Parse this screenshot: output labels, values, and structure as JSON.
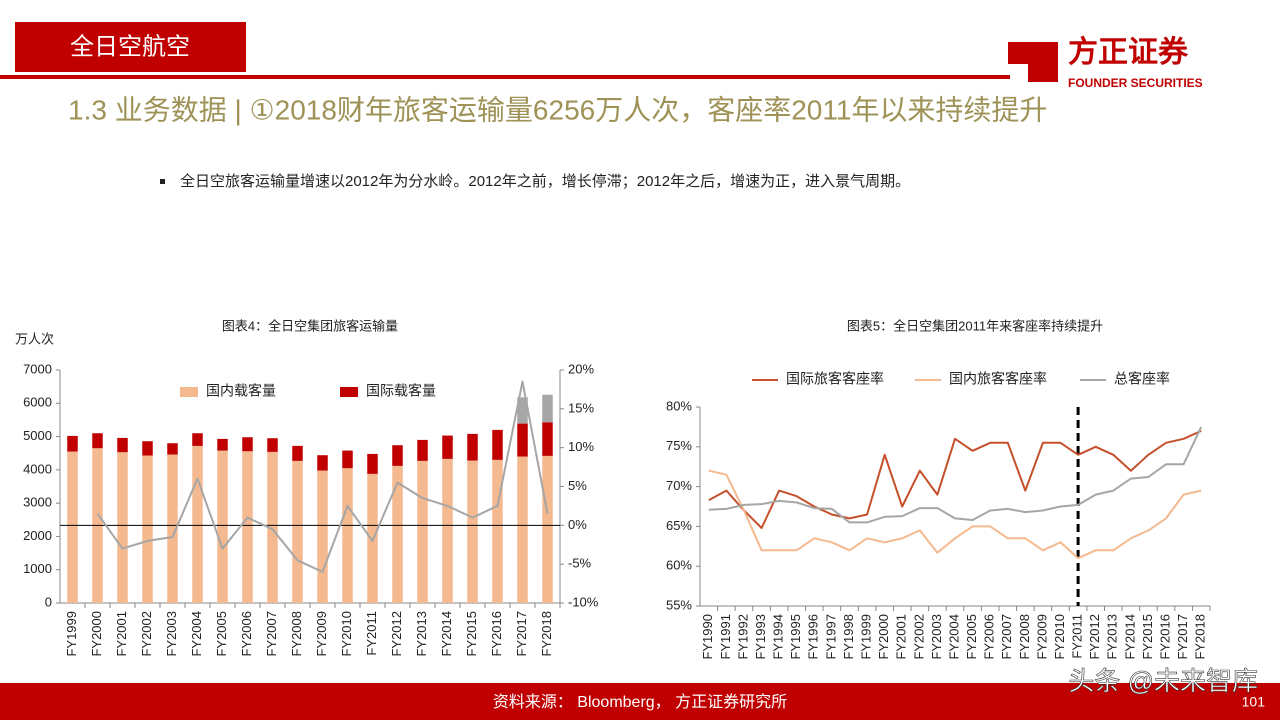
{
  "header": {
    "section": "全日空航空",
    "logo": "方正证券",
    "logo_sub": "FOUNDER SECURITIES"
  },
  "title": "1.3 业务数据 | ①2018财年旅客运输量6256万人次，客座率2011年以来持续提升",
  "bullet": "全日空旅客运输量增速以2012年为分水岭。2012年之前，增长停滞；2012年之后，增速为正，进入景气周期。",
  "chart_data": [
    {
      "type": "bar",
      "stacked": true,
      "title": "图表4：全日空集团旅客运输量",
      "y_label": "万人次",
      "categories": [
        "FY1999",
        "FY2000",
        "FY2001",
        "FY2002",
        "FY2003",
        "FY2004",
        "FY2005",
        "FY2006",
        "FY2007",
        "FY2008",
        "FY2009",
        "FY2010",
        "FY2011",
        "FY2012",
        "FY2013",
        "FY2014",
        "FY2015",
        "FY2016",
        "FY2017",
        "FY2018"
      ],
      "series": [
        {
          "name": "国内载客量",
          "color": "#f4b98e",
          "values": [
            4550,
            4650,
            4530,
            4430,
            4460,
            4720,
            4580,
            4560,
            4540,
            4270,
            3980,
            4050,
            3880,
            4120,
            4270,
            4330,
            4280,
            4300,
            4400,
            4420
          ]
        },
        {
          "name": "国际载客量",
          "color": "#c00000",
          "values": [
            470,
            450,
            430,
            430,
            340,
            380,
            350,
            420,
            410,
            450,
            460,
            530,
            600,
            620,
            630,
            700,
            800,
            900,
            990,
            1010
          ]
        },
        {
          "color": "#a6a6a6",
          "values": [
            null,
            null,
            null,
            null,
            null,
            null,
            null,
            null,
            null,
            null,
            null,
            null,
            null,
            null,
            null,
            null,
            null,
            null,
            790,
            826
          ]
        },
        {
          "type": "line",
          "axis": "y2",
          "color": "#a6a6a6",
          "values": [
            null,
            1.5,
            -3,
            -2,
            -1.5,
            6,
            -3,
            1,
            -0.5,
            -4.5,
            -6,
            2.5,
            -2,
            5.5,
            3.5,
            2.5,
            1,
            2.5,
            18.5,
            1.5
          ]
        }
      ],
      "ylim": [
        0,
        7000
      ],
      "yticks": [
        0,
        1000,
        2000,
        3000,
        4000,
        5000,
        6000,
        7000
      ],
      "y2lim": [
        -10,
        20
      ],
      "y2ticks": [
        {
          "value": -10,
          "label": "-10%"
        },
        {
          "value": -5,
          "label": "-5%"
        },
        {
          "value": 0,
          "label": "0%"
        },
        {
          "value": 5,
          "label": "5%"
        },
        {
          "value": 10,
          "label": "10%"
        },
        {
          "value": 15,
          "label": "15%"
        },
        {
          "value": 20,
          "label": "20%"
        }
      ]
    },
    {
      "type": "line",
      "title": "图表5：全日空集团2011年来客座率持续提升",
      "categories": [
        "FY1990",
        "FY1991",
        "FY1992",
        "FY1993",
        "FY1994",
        "FY1995",
        "FY1996",
        "FY1997",
        "FY1998",
        "FY1999",
        "FY2000",
        "FY2001",
        "FY2002",
        "FY2003",
        "FY2004",
        "FY2005",
        "FY2006",
        "FY2007",
        "FY2008",
        "FY2009",
        "FY2010",
        "FY2011",
        "FY2012",
        "FY2013",
        "FY2014",
        "FY2015",
        "FY2016",
        "FY2017",
        "FY2018"
      ],
      "series": [
        {
          "name": "国际旅客客座率",
          "color": "#c5502b",
          "values": [
            68.3,
            69.5,
            67,
            64.8,
            69.5,
            68.8,
            67.5,
            66.5,
            66,
            66.5,
            74,
            67.5,
            72,
            69,
            76,
            74.5,
            75.5,
            75.5,
            69.5,
            75.5,
            75.5,
            74,
            75,
            74,
            72,
            74,
            75.5,
            76,
            77
          ]
        },
        {
          "name": "国内旅客客座率",
          "color": "#f4b98e",
          "values": [
            72,
            71.5,
            67,
            62,
            62,
            62,
            63.5,
            63,
            62,
            63.5,
            63,
            63.5,
            64.5,
            61.7,
            63.5,
            65,
            65,
            63.5,
            63.5,
            62,
            63,
            61,
            62,
            62,
            63.5,
            64.5,
            66,
            69,
            69.5
          ]
        },
        {
          "name": "总客座率",
          "color": "#a6a6a6",
          "values": [
            67.1,
            67.2,
            67.7,
            67.8,
            68.2,
            68,
            67.3,
            67.2,
            65.5,
            65.5,
            66.2,
            66.3,
            67.3,
            67.3,
            66,
            65.8,
            67,
            67.2,
            66.8,
            67,
            67.5,
            67.7,
            69,
            69.5,
            71,
            71.2,
            72.8,
            72.8,
            77.5
          ]
        }
      ],
      "ylim": [
        55,
        80
      ],
      "yticks": [
        {
          "value": 55,
          "label": "55%"
        },
        {
          "value": 60,
          "label": "60%"
        },
        {
          "value": 65,
          "label": "65%"
        },
        {
          "value": 70,
          "label": "70%"
        },
        {
          "value": 75,
          "label": "75%"
        },
        {
          "value": 80,
          "label": "80%"
        }
      ],
      "vline": "FY2011"
    }
  ],
  "source": "资料来源： Bloomberg， 方正证券研究所",
  "page": "101",
  "watermark": "头条 @未来智库"
}
